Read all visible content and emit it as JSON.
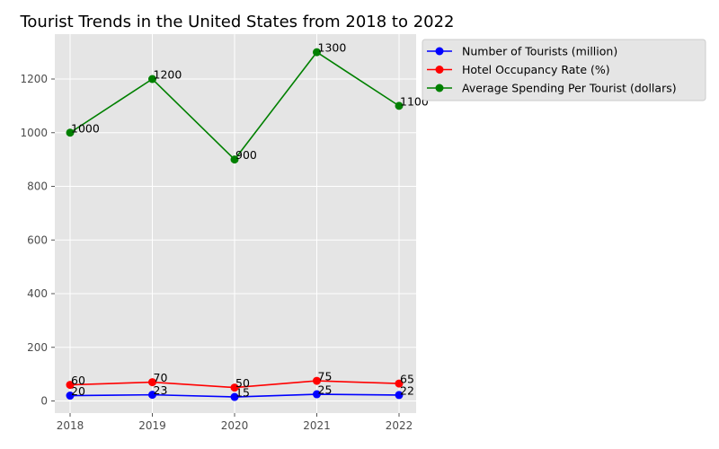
{
  "chart_data": {
    "type": "line",
    "title": "Tourist Trends in the United States from 2018 to 2022",
    "xlabel": "",
    "ylabel": "",
    "categories": [
      "2018",
      "2019",
      "2020",
      "2021",
      "2022"
    ],
    "ylim": [
      -50,
      1370
    ],
    "yticks": [
      0,
      200,
      400,
      600,
      800,
      1000,
      1200
    ],
    "grid": true,
    "legend_position": "outside-top-right",
    "background_color": "#e5e5e5",
    "series": [
      {
        "name": "Number of Tourists (million)",
        "color": "#0000ff",
        "values": [
          20,
          23,
          15,
          25,
          22
        ]
      },
      {
        "name": "Hotel Occupancy Rate (%)",
        "color": "#ff0000",
        "values": [
          60,
          70,
          50,
          75,
          65
        ]
      },
      {
        "name": "Average Spending Per Tourist (dollars)",
        "color": "#008000",
        "values": [
          1000,
          1200,
          900,
          1300,
          1100
        ]
      }
    ]
  }
}
